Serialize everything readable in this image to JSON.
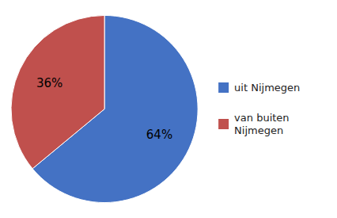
{
  "chart_data": {
    "type": "pie",
    "categories": [
      "uit Nijmegen",
      "van buiten\nNijmegen"
    ],
    "values": [
      64,
      36
    ],
    "value_labels": [
      "64%",
      "36%"
    ],
    "colors": [
      "#4472C4",
      "#C0504D"
    ],
    "data_labels": true,
    "legend": "right"
  }
}
